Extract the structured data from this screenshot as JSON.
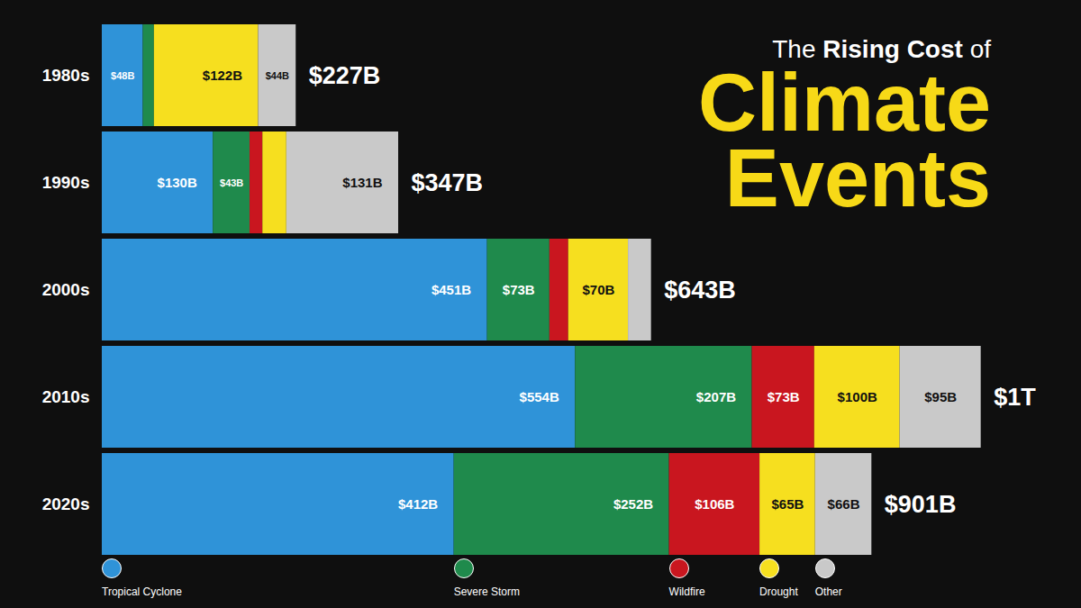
{
  "chart_data": {
    "type": "bar",
    "orientation": "horizontal",
    "stacked": true,
    "data_labels": true,
    "tick_labels": "y",
    "legend": "bottom",
    "title": "The Rising Cost of Climate Events",
    "categories": [
      "1980s",
      "1990s",
      "2000s",
      "2010s",
      "2020s"
    ],
    "xlim": [
      0,
      1100
    ],
    "series": [
      {
        "name": "Tropical Cyclone",
        "color": "#2f93d8",
        "values": [
          48,
          130,
          451,
          554,
          412
        ],
        "value_labels": [
          "$48B",
          "$130B",
          "$451B",
          "$554B",
          "$412B"
        ]
      },
      {
        "name": "Severe Storm",
        "color": "#1f8a4c",
        "values": [
          13,
          43,
          73,
          207,
          252
        ],
        "value_labels": [
          null,
          "$43B",
          "$73B",
          "$207B",
          "$252B"
        ]
      },
      {
        "name": "Wildfire",
        "color": "#c9161f",
        "values": [
          0,
          15,
          22,
          73,
          106
        ],
        "value_labels": [
          null,
          null,
          null,
          "$73B",
          "$106B"
        ]
      },
      {
        "name": "Drought",
        "color": "#f6df1f",
        "values": [
          122,
          28,
          70,
          100,
          65
        ],
        "value_labels": [
          "$122B",
          null,
          "$70B",
          "$100B",
          "$65B"
        ]
      },
      {
        "name": "Other",
        "color": "#c9c9c9",
        "values": [
          44,
          131,
          27,
          95,
          66
        ],
        "value_labels": [
          "$44B",
          "$131B",
          null,
          "$95B",
          "$66B"
        ]
      }
    ],
    "totals": [
      227,
      347,
      643,
      1000,
      901
    ],
    "total_labels": [
      "$227B",
      "$347B",
      "$643B",
      "$1T",
      "$901B"
    ]
  }
}
